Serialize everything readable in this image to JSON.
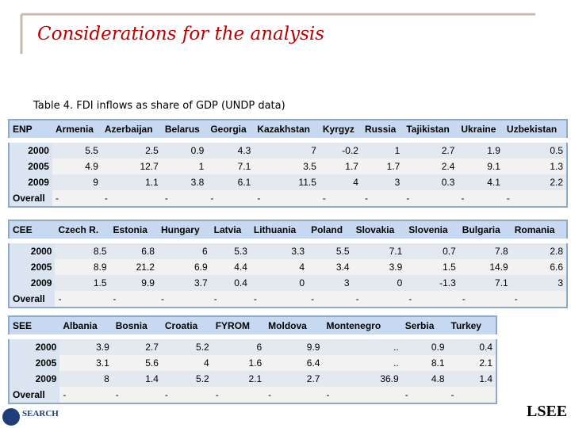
{
  "header": {
    "title": "Considerations for the analysis",
    "subtitle": "Table 4. FDI inflows as share of GDP (UNDP data)"
  },
  "tables": [
    {
      "group": "ENP",
      "columns": [
        "Armenia",
        "Azerbaijan",
        "Belarus",
        "Georgia",
        "Kazakhstan",
        "Kyrgyz",
        "Russia",
        "Tajikistan",
        "Ukraine",
        "Uzbekistan"
      ],
      "rows": [
        {
          "label": "2000",
          "cells": [
            5.5,
            2.5,
            0.9,
            4.3,
            7,
            -0.2,
            1,
            2.7,
            1.9,
            0.5
          ]
        },
        {
          "label": "2005",
          "cells": [
            4.9,
            12.7,
            1,
            7.1,
            3.5,
            1.7,
            1.7,
            2.4,
            9.1,
            1.3
          ]
        },
        {
          "label": "2009",
          "cells": [
            9,
            1.1,
            3.8,
            6.1,
            11.5,
            4,
            3,
            0.3,
            4.1,
            2.2
          ]
        },
        {
          "label": "Overall",
          "cells": [
            "-",
            "-",
            "-",
            "-",
            "-",
            "-",
            "-",
            "-",
            "-",
            "-"
          ]
        }
      ]
    },
    {
      "group": "CEE",
      "columns": [
        "Czech R.",
        "Estonia",
        "Hungary",
        "Latvia",
        "Lithuania",
        "Poland",
        "Slovakia",
        "Slovenia",
        "Bulgaria",
        "Romania"
      ],
      "rows": [
        {
          "label": "2000",
          "cells": [
            8.5,
            6.8,
            6,
            5.3,
            3.3,
            5.5,
            7.1,
            0.7,
            7.8,
            2.8
          ]
        },
        {
          "label": "2005",
          "cells": [
            8.9,
            21.2,
            6.9,
            4.4,
            4,
            3.4,
            3.9,
            1.5,
            14.9,
            6.6
          ]
        },
        {
          "label": "2009",
          "cells": [
            1.5,
            9.9,
            3.7,
            0.4,
            0,
            3,
            0,
            -1.3,
            7.1,
            3
          ]
        },
        {
          "label": "Overall",
          "cells": [
            "-",
            "-",
            "-",
            "-",
            "-",
            "-",
            "-",
            "-",
            "-",
            "-"
          ]
        }
      ]
    },
    {
      "group": "SEE",
      "columns": [
        "Albania",
        "Bosnia",
        "Croatia",
        "FYROM",
        "Moldova",
        "Montenegro",
        "Serbia",
        "Turkey"
      ],
      "rows": [
        {
          "label": "2000",
          "cells": [
            3.9,
            2.7,
            5.2,
            6,
            9.9,
            "..",
            0.9,
            0.4
          ]
        },
        {
          "label": "2005",
          "cells": [
            3.1,
            5.6,
            4,
            1.6,
            6.4,
            "..",
            8.1,
            2.1
          ]
        },
        {
          "label": "2009",
          "cells": [
            8,
            1.4,
            5.2,
            2.1,
            2.7,
            36.9,
            4.8,
            1.4
          ]
        },
        {
          "label": "Overall",
          "cells": [
            "-",
            "-",
            "-",
            "-",
            "-",
            "-",
            "-",
            "-"
          ]
        }
      ]
    }
  ],
  "logos": {
    "left": "SEARCH",
    "right": "LSEE"
  }
}
